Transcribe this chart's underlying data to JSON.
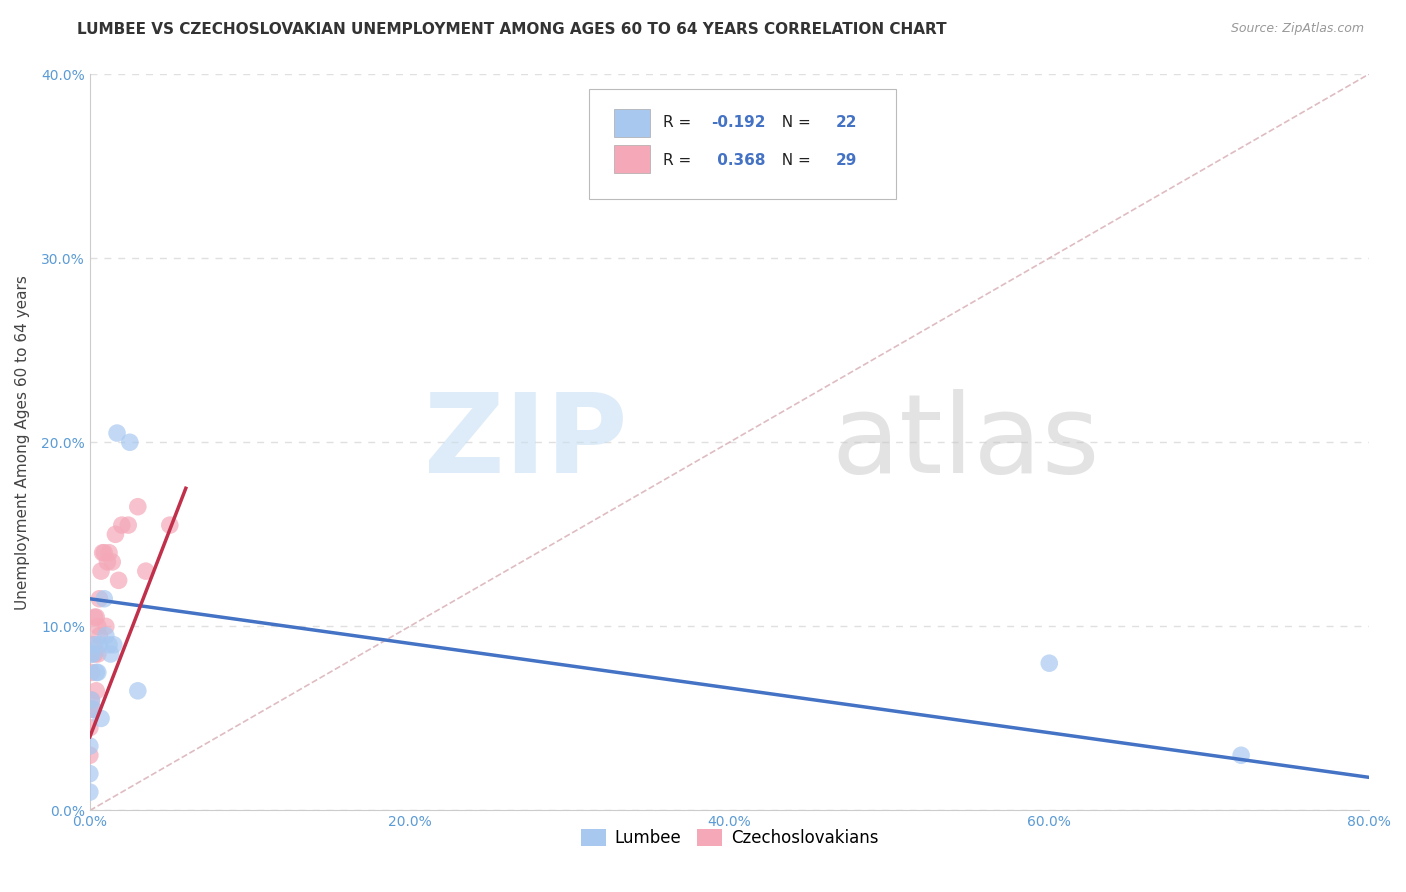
{
  "title": "LUMBEE VS CZECHOSLOVAKIAN UNEMPLOYMENT AMONG AGES 60 TO 64 YEARS CORRELATION CHART",
  "source": "Source: ZipAtlas.com",
  "ylabel": "Unemployment Among Ages 60 to 64 years",
  "xlim": [
    0.0,
    0.8
  ],
  "ylim": [
    0.0,
    0.4
  ],
  "xticks": [
    0.0,
    0.2,
    0.4,
    0.6,
    0.8
  ],
  "yticks": [
    0.0,
    0.1,
    0.2,
    0.3,
    0.4
  ],
  "xtick_labels": [
    "0.0%",
    "20.0%",
    "40.0%",
    "60.0%",
    "80.0%"
  ],
  "ytick_labels": [
    "0.0%",
    "10.0%",
    "20.0%",
    "30.0%",
    "40.0%"
  ],
  "lumbee_color": "#a8c8f0",
  "czechoslovakian_color": "#f4a8b8",
  "lumbee_R": -0.192,
  "lumbee_N": 22,
  "czechoslovakian_R": 0.368,
  "czechoslovakian_N": 29,
  "lumbee_line_color": "#4472c4",
  "czechoslovakian_line_color": "#c0304a",
  "diagonal_color": "#d0a0a8",
  "lumbee_scatter_x": [
    0.0,
    0.0,
    0.0,
    0.001,
    0.001,
    0.002,
    0.002,
    0.003,
    0.004,
    0.005,
    0.006,
    0.007,
    0.009,
    0.01,
    0.012,
    0.013,
    0.015,
    0.017,
    0.025,
    0.03,
    0.6,
    0.72
  ],
  "lumbee_scatter_y": [
    0.01,
    0.02,
    0.035,
    0.06,
    0.085,
    0.055,
    0.085,
    0.09,
    0.075,
    0.075,
    0.09,
    0.05,
    0.115,
    0.095,
    0.09,
    0.085,
    0.09,
    0.205,
    0.2,
    0.065,
    0.08,
    0.03
  ],
  "czechoslovakian_scatter_x": [
    0.0,
    0.0,
    0.0,
    0.001,
    0.001,
    0.002,
    0.002,
    0.003,
    0.003,
    0.004,
    0.004,
    0.005,
    0.005,
    0.006,
    0.006,
    0.007,
    0.008,
    0.009,
    0.01,
    0.011,
    0.012,
    0.014,
    0.016,
    0.018,
    0.02,
    0.024,
    0.03,
    0.035,
    0.05
  ],
  "czechoslovakian_scatter_y": [
    0.03,
    0.045,
    0.055,
    0.06,
    0.075,
    0.055,
    0.09,
    0.085,
    0.105,
    0.065,
    0.105,
    0.085,
    0.1,
    0.095,
    0.115,
    0.13,
    0.14,
    0.14,
    0.1,
    0.135,
    0.14,
    0.135,
    0.15,
    0.125,
    0.155,
    0.155,
    0.165,
    0.13,
    0.155
  ],
  "lumbee_line_x0": 0.0,
  "lumbee_line_y0": 0.115,
  "lumbee_line_x1": 0.8,
  "lumbee_line_y1": 0.018,
  "czech_line_x0": 0.0,
  "czech_line_y0": 0.04,
  "czech_line_x1": 0.06,
  "czech_line_y1": 0.175,
  "grid_color": "#e0e0e0",
  "background_color": "#ffffff",
  "title_fontsize": 11,
  "axis_label_fontsize": 11,
  "tick_fontsize": 10,
  "legend_fontsize": 12
}
